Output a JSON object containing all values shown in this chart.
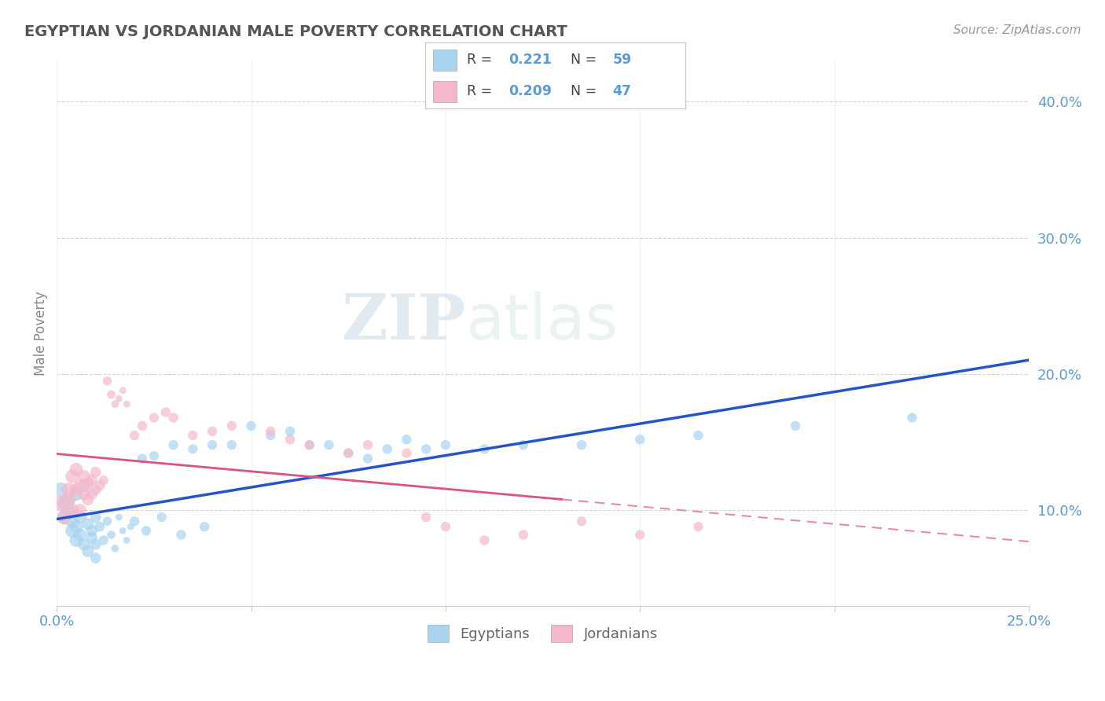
{
  "title": "EGYPTIAN VS JORDANIAN MALE POVERTY CORRELATION CHART",
  "source": "Source: ZipAtlas.com",
  "ylabel": "Male Poverty",
  "ytick_labels": [
    "10.0%",
    "20.0%",
    "30.0%",
    "40.0%"
  ],
  "ytick_values": [
    0.1,
    0.2,
    0.3,
    0.4
  ],
  "xmin": 0.0,
  "xmax": 0.25,
  "ymin": 0.03,
  "ymax": 0.43,
  "egyptian_R": "0.221",
  "egyptian_N": "59",
  "jordanian_R": "0.209",
  "jordanian_N": "47",
  "egyptian_color": "#a8d4f0",
  "jordanian_color": "#f5b8cb",
  "trendline_egyptian_color": "#2255cc",
  "trendline_jordanian_color": "#e05080",
  "trendline_jordanian_dashed_color": "#e88aaa",
  "background_color": "#ffffff",
  "grid_color": "#cccccc",
  "watermark_zip": "ZIP",
  "watermark_atlas": "atlas",
  "egyptians_x": [
    0.001,
    0.002,
    0.002,
    0.003,
    0.003,
    0.004,
    0.004,
    0.005,
    0.005,
    0.005,
    0.006,
    0.006,
    0.007,
    0.007,
    0.008,
    0.008,
    0.009,
    0.009,
    0.01,
    0.01,
    0.01,
    0.011,
    0.012,
    0.013,
    0.014,
    0.015,
    0.016,
    0.017,
    0.018,
    0.019,
    0.02,
    0.022,
    0.023,
    0.025,
    0.027,
    0.03,
    0.032,
    0.035,
    0.038,
    0.04,
    0.045,
    0.05,
    0.055,
    0.06,
    0.065,
    0.07,
    0.075,
    0.08,
    0.085,
    0.09,
    0.095,
    0.1,
    0.11,
    0.12,
    0.135,
    0.15,
    0.165,
    0.19,
    0.22
  ],
  "egyptians_y": [
    0.115,
    0.095,
    0.105,
    0.1,
    0.108,
    0.085,
    0.092,
    0.112,
    0.088,
    0.078,
    0.095,
    0.082,
    0.118,
    0.075,
    0.09,
    0.07,
    0.085,
    0.08,
    0.095,
    0.075,
    0.065,
    0.088,
    0.078,
    0.092,
    0.082,
    0.072,
    0.095,
    0.085,
    0.078,
    0.088,
    0.092,
    0.138,
    0.085,
    0.14,
    0.095,
    0.148,
    0.082,
    0.145,
    0.088,
    0.148,
    0.148,
    0.162,
    0.155,
    0.158,
    0.148,
    0.148,
    0.142,
    0.138,
    0.145,
    0.152,
    0.145,
    0.148,
    0.145,
    0.148,
    0.148,
    0.152,
    0.155,
    0.162,
    0.168
  ],
  "jordanians_x": [
    0.001,
    0.002,
    0.003,
    0.003,
    0.004,
    0.004,
    0.005,
    0.005,
    0.006,
    0.006,
    0.007,
    0.007,
    0.008,
    0.008,
    0.009,
    0.009,
    0.01,
    0.01,
    0.011,
    0.012,
    0.013,
    0.014,
    0.015,
    0.016,
    0.017,
    0.018,
    0.02,
    0.022,
    0.025,
    0.028,
    0.03,
    0.035,
    0.04,
    0.045,
    0.055,
    0.06,
    0.065,
    0.075,
    0.08,
    0.09,
    0.095,
    0.1,
    0.11,
    0.12,
    0.135,
    0.15,
    0.165
  ],
  "jordanians_y": [
    0.105,
    0.095,
    0.115,
    0.108,
    0.1,
    0.125,
    0.13,
    0.115,
    0.118,
    0.1,
    0.125,
    0.112,
    0.12,
    0.108,
    0.112,
    0.122,
    0.128,
    0.115,
    0.118,
    0.122,
    0.195,
    0.185,
    0.178,
    0.182,
    0.188,
    0.178,
    0.155,
    0.162,
    0.168,
    0.172,
    0.168,
    0.155,
    0.158,
    0.162,
    0.158,
    0.152,
    0.148,
    0.142,
    0.148,
    0.142,
    0.095,
    0.088,
    0.078,
    0.082,
    0.092,
    0.082,
    0.088
  ]
}
